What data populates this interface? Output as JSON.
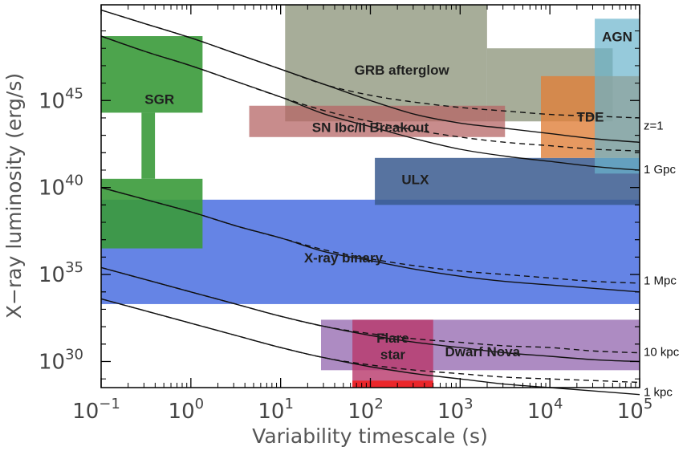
{
  "chart_data": {
    "type": "area",
    "xlabel": "Variability timescale (s)",
    "ylabel": "X−ray luminosity (erg/s)",
    "xscale": "log",
    "yscale": "log",
    "xlim_log10": [
      -1,
      5
    ],
    "ylim_log10": [
      28.5,
      50.5
    ],
    "xticks": [
      {
        "base": "10",
        "exp": "−1",
        "log10": -1
      },
      {
        "base": "10",
        "exp": "0",
        "log10": 0
      },
      {
        "base": "10",
        "exp": "1",
        "log10": 1
      },
      {
        "base": "10",
        "exp": "2",
        "log10": 2
      },
      {
        "base": "10",
        "exp": "3",
        "log10": 3
      },
      {
        "base": "10",
        "exp": "4",
        "log10": 4
      },
      {
        "base": "10",
        "exp": "5",
        "log10": 5
      }
    ],
    "yticks": [
      {
        "base": "10",
        "exp": "30",
        "log10": 30
      },
      {
        "base": "10",
        "exp": "35",
        "log10": 35
      },
      {
        "base": "10",
        "exp": "40",
        "log10": 40
      },
      {
        "base": "10",
        "exp": "45",
        "log10": 45
      }
    ],
    "regions": [
      {
        "label": "X-ray binary",
        "color": "#4a6fe0",
        "opacity": 0.85,
        "x_log10": [
          -1,
          5
        ],
        "y_log10": [
          33.3,
          39.3
        ],
        "label_at_log10": [
          1.7,
          35.9
        ]
      },
      {
        "label": "ULX",
        "color": "#3a5a8f",
        "opacity": 0.85,
        "x_log10": [
          2.05,
          5
        ],
        "y_log10": [
          39,
          41.7
        ],
        "label_at_log10": [
          2.5,
          40.4
        ]
      },
      {
        "label": "SGR",
        "color": "#3a9a3a",
        "opacity": 0.9,
        "x_log10": [
          -1,
          0.13
        ],
        "y_log10": [
          36.5,
          40.5
        ],
        "label_at_log10": null
      },
      {
        "label": "SGR",
        "color": "#3a9a3a",
        "opacity": 0.9,
        "x_log10": [
          -0.55,
          -0.4
        ],
        "y_log10": [
          40.5,
          44.3
        ],
        "label_at_log10": null
      },
      {
        "label": "SGR",
        "color": "#3a9a3a",
        "opacity": 0.9,
        "x_log10": [
          -1,
          0.13
        ],
        "y_log10": [
          44.3,
          48.7
        ],
        "label_at_log10": [
          -0.35,
          45.0
        ]
      },
      {
        "label": "GRB afterglow",
        "color": "#8a9277",
        "opacity": 0.75,
        "x_log10": [
          1.05,
          3.3
        ],
        "y_log10": [
          43.8,
          50.5
        ],
        "label_at_log10": [
          2.35,
          46.7
        ]
      },
      {
        "label": "GRB afterglow",
        "color": "#8a9277",
        "opacity": 0.75,
        "x_log10": [
          3.3,
          4.7
        ],
        "y_log10": [
          43.8,
          48.0
        ],
        "label_at_log10": null
      },
      {
        "label": "SN Ibc/II Breakout",
        "color": "#b56666",
        "opacity": 0.75,
        "x_log10": [
          0.65,
          3.5
        ],
        "y_log10": [
          42.9,
          44.7
        ],
        "label_at_log10": [
          2.0,
          43.4
        ]
      },
      {
        "label": "TDE",
        "color": "#e07f3a",
        "opacity": 0.8,
        "x_log10": [
          3.9,
          5
        ],
        "y_log10": [
          41.7,
          46.4
        ],
        "label_at_log10": [
          4.45,
          44.0
        ]
      },
      {
        "label": "AGN",
        "color": "#6ab4cc",
        "opacity": 0.7,
        "x_log10": [
          4.5,
          5
        ],
        "y_log10": [
          40.8,
          49.7
        ],
        "label_at_log10": [
          4.75,
          48.6
        ]
      },
      {
        "label": "Dwarf Nova",
        "color": "#8a5aa8",
        "opacity": 0.7,
        "x_log10": [
          1.45,
          5
        ],
        "y_log10": [
          29.5,
          32.4
        ],
        "label_at_log10": [
          3.25,
          30.5
        ]
      },
      {
        "label": "Flare star",
        "color": "#b8376a",
        "opacity": 0.8,
        "x_log10": [
          1.8,
          2.7
        ],
        "y_log10": [
          28.4,
          32.4
        ],
        "label_lines": [
          "Flare",
          "star"
        ],
        "label_at_log10": [
          2.25,
          30.8
        ]
      },
      {
        "label": "",
        "color": "#ee2020",
        "opacity": 0.9,
        "x_log10": [
          1.8,
          2.7
        ],
        "y_log10": [
          28.3,
          28.9
        ],
        "label_at_log10": null
      }
    ],
    "series": [
      {
        "name": "z=1",
        "style": "solid",
        "y_log10": [
          50.2,
          49.4,
          48.6,
          47.7,
          46.8,
          45.9,
          45.0,
          44.2,
          43.7,
          43.4,
          43.1,
          42.8,
          42.6
        ]
      },
      {
        "name": "z=1",
        "style": "dashed",
        "y_log10": [
          50.2,
          49.4,
          48.6,
          47.7,
          46.8,
          45.9,
          45.3,
          44.9,
          44.6,
          44.4,
          44.2,
          44.1,
          44.0
        ]
      },
      {
        "name": "1 Gpc",
        "style": "solid",
        "y_log10": [
          48.7,
          47.8,
          47.0,
          46.1,
          45.2,
          44.2,
          43.5,
          42.8,
          42.2,
          41.8,
          41.5,
          41.2,
          41.0
        ]
      },
      {
        "name": "1 Gpc",
        "style": "dashed",
        "y_log10": [
          48.7,
          47.8,
          47.0,
          46.1,
          45.2,
          44.4,
          43.8,
          43.3,
          42.9,
          42.6,
          42.4,
          42.2,
          42.1
        ]
      },
      {
        "name": "1 Mpc",
        "style": "solid",
        "y_log10": [
          40.0,
          39.3,
          38.6,
          37.8,
          37.1,
          36.3,
          35.8,
          35.3,
          34.9,
          34.6,
          34.4,
          34.2,
          34.0
        ]
      },
      {
        "name": "1 Mpc",
        "style": "dashed",
        "y_log10": [
          40.0,
          39.3,
          38.6,
          37.8,
          37.1,
          36.4,
          35.9,
          35.5,
          35.2,
          35.0,
          34.8,
          34.6,
          34.5
        ]
      },
      {
        "name": "10 kpc",
        "style": "solid",
        "y_log10": [
          35.4,
          34.7,
          34.0,
          33.3,
          32.6,
          32.0,
          31.5,
          31.1,
          30.8,
          30.5,
          30.3,
          30.1,
          30.0
        ]
      },
      {
        "name": "10 kpc",
        "style": "dashed",
        "y_log10": [
          35.4,
          34.7,
          34.0,
          33.3,
          32.6,
          32.0,
          31.6,
          31.3,
          31.1,
          30.9,
          30.8,
          30.6,
          30.5
        ]
      },
      {
        "name": "1 kpc",
        "style": "solid",
        "y_log10": [
          33.6,
          32.9,
          32.2,
          31.5,
          30.8,
          30.2,
          29.7,
          29.3,
          29.0,
          28.7,
          28.5,
          28.3,
          28.1
        ]
      },
      {
        "name": "1 kpc",
        "style": "dashed",
        "y_log10": [
          33.6,
          32.9,
          32.2,
          31.5,
          30.8,
          30.2,
          29.8,
          29.5,
          29.3,
          29.1,
          29.0,
          28.9,
          28.8
        ]
      }
    ],
    "series_x_log10": [
      -1,
      -0.5,
      0,
      0.5,
      1,
      1.5,
      2,
      2.5,
      3,
      3.5,
      4,
      4.5,
      5
    ],
    "right_labels": [
      {
        "text": "z=1",
        "y_log10": 43.5
      },
      {
        "text": "1 Gpc",
        "y_log10": 41.0
      },
      {
        "text": "1 Mpc",
        "y_log10": 34.6
      },
      {
        "text": "10 kpc",
        "y_log10": 30.5
      },
      {
        "text": "1 kpc",
        "y_log10": 28.2
      }
    ]
  }
}
